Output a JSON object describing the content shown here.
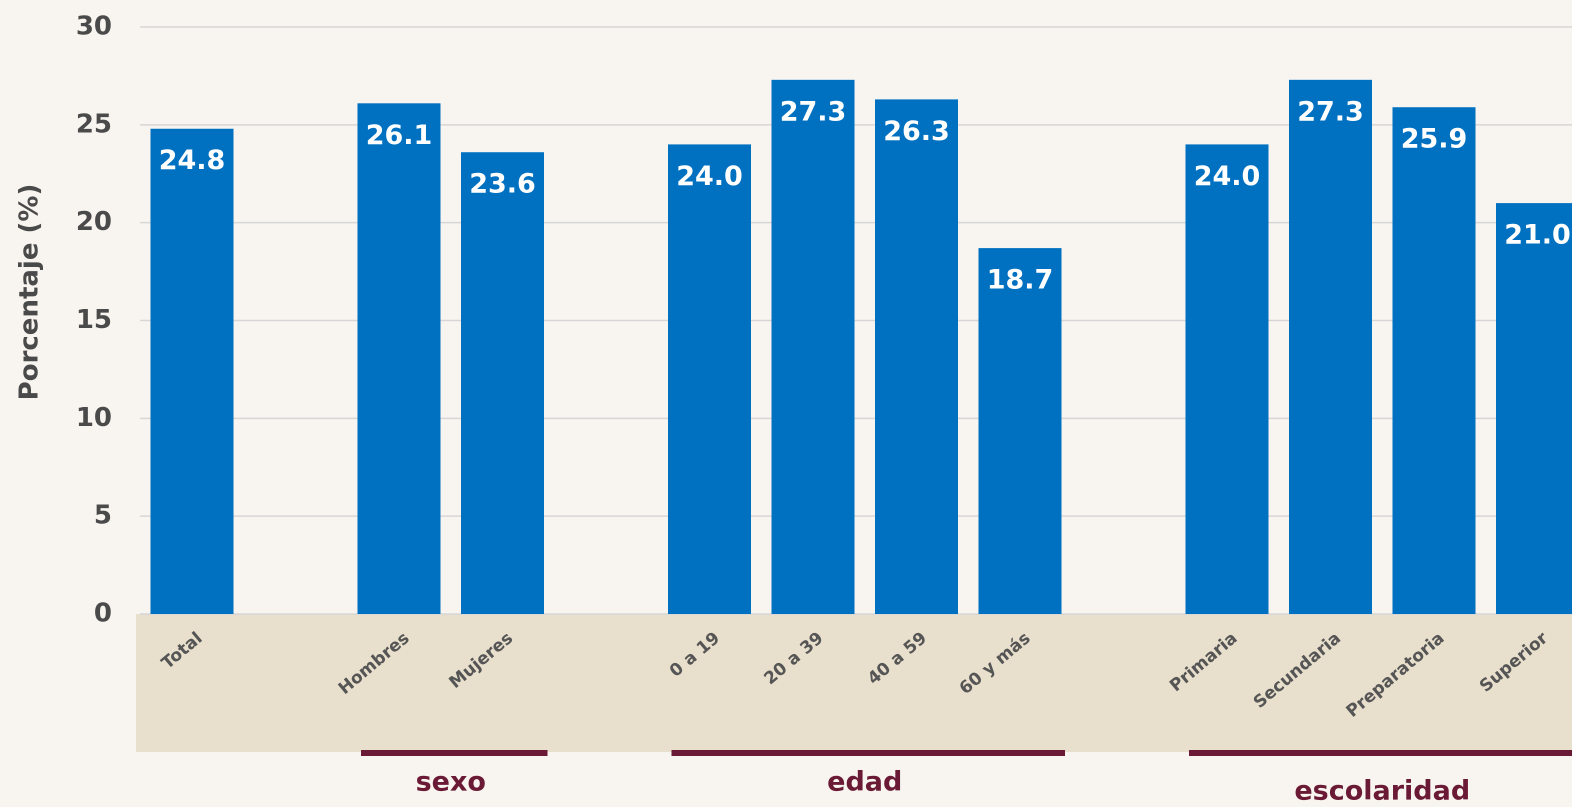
{
  "chart_data": {
    "type": "bar",
    "y_label": "Porcentaje (%)",
    "categories": [
      "Total",
      null,
      "Hombres",
      "Mujeres",
      null,
      "0 a 19",
      "20 a 39",
      "40 a 59",
      "60 y más",
      null,
      "Primaria",
      "Secundaria",
      "Preparatoria",
      "Superior"
    ],
    "values": [
      24.8,
      null,
      26.1,
      23.6,
      null,
      24,
      27.3,
      26.3,
      18.7,
      null,
      24,
      27.3,
      25.9,
      21
    ],
    "value_labels": [
      "24.8",
      null,
      "26.1",
      "23.6",
      null,
      "24.0",
      "27.3",
      "26.3",
      "18.7",
      null,
      "24.0",
      "27.3",
      "25.9",
      "21.0"
    ],
    "color": "#0070c0",
    "groups": [
      "sexo",
      "edad",
      "escolaridad"
    ],
    "ylim": [
      0,
      30
    ],
    "yticks": [
      0,
      5,
      10,
      15,
      20,
      25,
      30
    ],
    "grid": true
  }
}
